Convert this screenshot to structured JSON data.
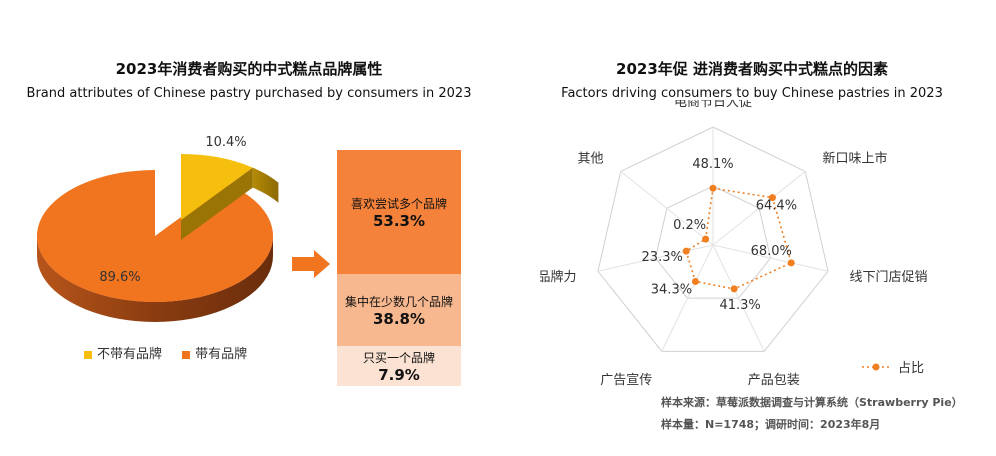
{
  "left": {
    "title_cn": "2023年消费者购买的中式糕点品牌属性",
    "title_en": "Brand attributes of Chinese pastry purchased by consumers in 2023"
  },
  "right": {
    "title_cn": "2023年促  进消费者购买中式糕点的因素",
    "title_en": "Factors driving consumers to buy Chinese pastries in 2023"
  },
  "chart_data": [
    {
      "type": "pie",
      "categories": [
        "不带有品牌",
        "带有品牌"
      ],
      "values": [
        10.4,
        89.6
      ],
      "labels": [
        "10.4%",
        "89.6%"
      ],
      "colors": [
        "#f6bf0d",
        "#f1741f"
      ],
      "legend": [
        "不带有品牌",
        "带有品牌"
      ]
    },
    {
      "type": "bar",
      "stacked": true,
      "categories": [
        "喜欢尝试多个品牌",
        "集中在少数几个品牌",
        "只买一个品牌"
      ],
      "values": [
        53.3,
        38.8,
        7.9
      ],
      "labels": [
        "53.3%",
        "38.8%",
        "7.9%"
      ],
      "colors": [
        "#f4823b",
        "#f8b88f",
        "#fbe2d2"
      ]
    },
    {
      "type": "radar",
      "axes": [
        "电商节日大促",
        "新口味上市",
        "线下门店促销",
        "产品包装",
        "广告宣传",
        "品牌力",
        "其他"
      ],
      "values": [
        48.1,
        64.4,
        68.0,
        41.3,
        34.3,
        23.3,
        0.2
      ],
      "labels": [
        "48.1%",
        "64.4%",
        "68.0%",
        "41.3%",
        "34.3%",
        "23.3%",
        "0.2%"
      ],
      "series_name": "占比",
      "color": "#f07f22",
      "range": [
        0,
        100
      ]
    }
  ],
  "source": {
    "line1": "样本来源：草莓派数据调查与计算系统（Strawberry Pie）",
    "line2": "样本量：N=1748；调研时间：2023年8月"
  }
}
